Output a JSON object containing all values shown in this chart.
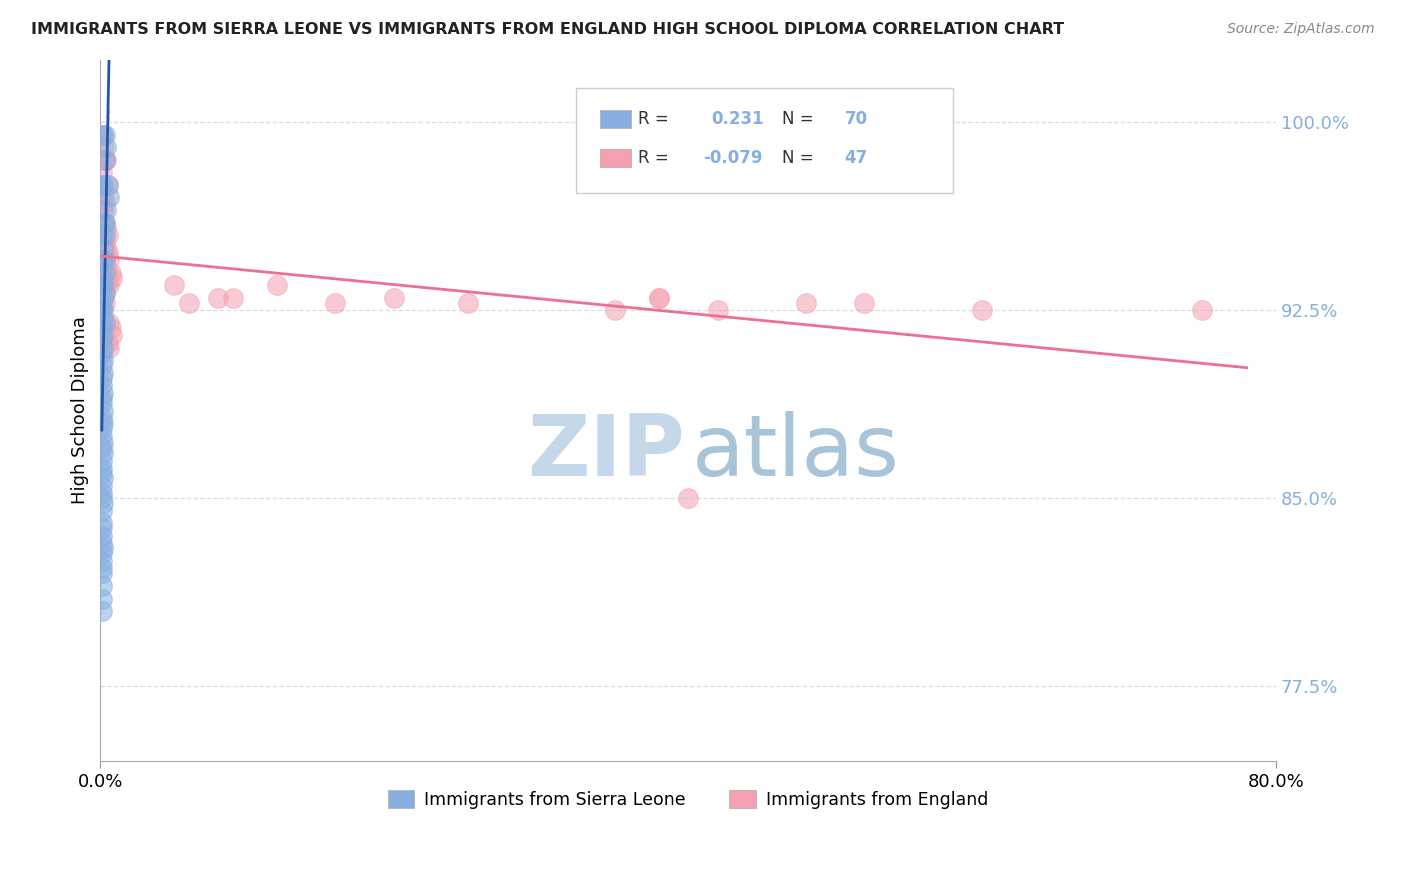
{
  "title": "IMMIGRANTS FROM SIERRA LEONE VS IMMIGRANTS FROM ENGLAND HIGH SCHOOL DIPLOMA CORRELATION CHART",
  "source": "Source: ZipAtlas.com",
  "ylabel": "High School Diploma",
  "right_ytick_labels": [
    "100.0%",
    "92.5%",
    "85.0%",
    "77.5%"
  ],
  "right_ytick_values": [
    1.0,
    0.925,
    0.85,
    0.775
  ],
  "legend_label1": "Immigrants from Sierra Leone",
  "legend_label2": "Immigrants from England",
  "R1": 0.231,
  "N1": 70,
  "R2": -0.079,
  "N2": 47,
  "color_blue": "#87AEDE",
  "color_pink": "#F4A0B0",
  "line_color_blue": "#2255AA",
  "line_color_pink": "#EE7090",
  "diag_line_color": "#BBBBBB",
  "watermark_zip_color": "#C5D8EA",
  "watermark_atlas_color": "#A8C4D8",
  "xlim": [
    0.0,
    0.8
  ],
  "ylim": [
    0.745,
    1.025
  ],
  "grid_color": "#DDDDDD",
  "sierra_leone_x": [
    0.002,
    0.003,
    0.004,
    0.003,
    0.005,
    0.006,
    0.004,
    0.003,
    0.002,
    0.001,
    0.002,
    0.003,
    0.001,
    0.002,
    0.003,
    0.002,
    0.001,
    0.003,
    0.002,
    0.001,
    0.002,
    0.003,
    0.002,
    0.001,
    0.002,
    0.001,
    0.002,
    0.003,
    0.001,
    0.002,
    0.001,
    0.002,
    0.001,
    0.002,
    0.001,
    0.002,
    0.001,
    0.001,
    0.002,
    0.001,
    0.001,
    0.002,
    0.001,
    0.002,
    0.001,
    0.001,
    0.002,
    0.001,
    0.002,
    0.001,
    0.001,
    0.001,
    0.002,
    0.001,
    0.001,
    0.001,
    0.002,
    0.001,
    0.001,
    0.001,
    0.001,
    0.001,
    0.002,
    0.001,
    0.001,
    0.001,
    0.001,
    0.001,
    0.001,
    0.001
  ],
  "sierra_leone_y": [
    0.995,
    0.995,
    0.99,
    0.985,
    0.975,
    0.97,
    0.965,
    0.96,
    0.975,
    0.975,
    0.96,
    0.955,
    0.955,
    0.95,
    0.945,
    0.945,
    0.945,
    0.94,
    0.938,
    0.935,
    0.935,
    0.932,
    0.93,
    0.928,
    0.925,
    0.925,
    0.922,
    0.92,
    0.918,
    0.915,
    0.913,
    0.91,
    0.908,
    0.905,
    0.903,
    0.9,
    0.898,
    0.895,
    0.892,
    0.89,
    0.888,
    0.885,
    0.882,
    0.88,
    0.878,
    0.875,
    0.872,
    0.87,
    0.868,
    0.865,
    0.862,
    0.86,
    0.858,
    0.855,
    0.852,
    0.85,
    0.848,
    0.845,
    0.84,
    0.838,
    0.835,
    0.832,
    0.83,
    0.828,
    0.825,
    0.822,
    0.82,
    0.815,
    0.81,
    0.805
  ],
  "england_x": [
    0.001,
    0.002,
    0.003,
    0.004,
    0.005,
    0.001,
    0.002,
    0.003,
    0.002,
    0.003,
    0.004,
    0.005,
    0.003,
    0.004,
    0.005,
    0.006,
    0.007,
    0.008,
    0.004,
    0.005,
    0.006,
    0.003,
    0.004,
    0.002,
    0.003,
    0.05,
    0.08,
    0.12,
    0.09,
    0.06,
    0.16,
    0.2,
    0.25,
    0.35,
    0.38,
    0.42,
    0.48,
    0.38,
    0.52,
    0.6,
    0.006,
    0.007,
    0.008,
    0.005,
    0.006,
    0.4,
    0.75
  ],
  "england_y": [
    0.995,
    0.99,
    0.985,
    0.985,
    0.975,
    0.98,
    0.97,
    0.968,
    0.965,
    0.96,
    0.958,
    0.955,
    0.952,
    0.95,
    0.948,
    0.945,
    0.94,
    0.938,
    0.942,
    0.938,
    0.935,
    0.932,
    0.935,
    0.93,
    0.928,
    0.935,
    0.93,
    0.935,
    0.93,
    0.928,
    0.928,
    0.93,
    0.928,
    0.925,
    0.93,
    0.925,
    0.928,
    0.93,
    0.928,
    0.925,
    0.92,
    0.918,
    0.915,
    0.912,
    0.91,
    0.85,
    0.925
  ]
}
